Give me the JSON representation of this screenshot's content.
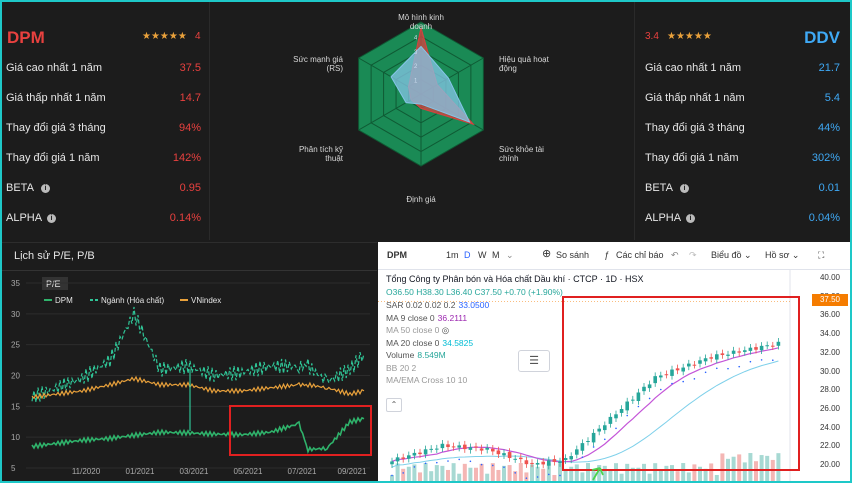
{
  "left": {
    "ticker": "DPM",
    "stars": "★★★★★",
    "rating": "4",
    "rows": [
      {
        "label": "Giá cao nhất 1 năm",
        "value": "37.5"
      },
      {
        "label": "Giá thấp nhất 1 năm",
        "value": "14.7"
      },
      {
        "label": "Thay đổi giá 3 tháng",
        "value": "94%"
      },
      {
        "label": "Thay đổi giá 1 năm",
        "value": "142%"
      },
      {
        "label": "BETA",
        "value": "0.95"
      },
      {
        "label": "ALPHA",
        "value": "0.14%"
      }
    ],
    "color": "#e8413f"
  },
  "right": {
    "ticker": "DDV",
    "stars": "★★★★★",
    "rating": "3.4",
    "rows": [
      {
        "label": "Giá cao nhất 1 năm",
        "value": "21.7"
      },
      {
        "label": "Giá thấp nhất 1 năm",
        "value": "5.4"
      },
      {
        "label": "Thay đổi giá 3 tháng",
        "value": "44%"
      },
      {
        "label": "Thay đổi giá 1 năm",
        "value": "302%"
      },
      {
        "label": "BETA",
        "value": "0.01"
      },
      {
        "label": "ALPHA",
        "value": "0.04%"
      }
    ],
    "color": "#3fa9f5"
  },
  "radar": {
    "axes": [
      "Mô hình kinh doanh",
      "Hiệu quả hoạt động",
      "Sức khỏe tài chính",
      "Định giá",
      "Phân tích kỹ thuật",
      "Sức mạnh giá (RS)"
    ],
    "rings": [
      "1",
      "2",
      "3",
      "4"
    ],
    "dpm": [
      4.6,
      1.3,
      4.2,
      1.0,
      0.8,
      1.0
    ],
    "ddv": [
      3.3,
      2.2,
      3.9,
      0.7,
      1.2,
      2.4
    ],
    "max": 5,
    "colors": {
      "dpm": "#d9403f",
      "ddv": "#86c5e8",
      "bg": "#1a8a55",
      "grid": "#0f5a34"
    }
  },
  "pe": {
    "title": "Lịch sử P/E, P/B",
    "tab": "P/E",
    "legend": [
      "DPM",
      "Ngành (Hóa chất)",
      "VNindex"
    ],
    "yticks": [
      5,
      10,
      15,
      20,
      25,
      30,
      35
    ],
    "xticks": [
      "11/2020",
      "01/2021",
      "03/2021",
      "05/2021",
      "07/2021",
      "09/2021"
    ],
    "colors": {
      "dpm": "#2fb36b",
      "industry": "#2fc496",
      "vnindex": "#e9a13b"
    }
  },
  "chart_data": {
    "type": "line",
    "title": "Lịch sử P/E, P/B",
    "ylim": [
      5,
      35
    ],
    "x": [
      "11/2020",
      "01/2021",
      "03/2021",
      "05/2021",
      "07/2021",
      "09/2021"
    ],
    "series": [
      {
        "name": "DPM",
        "values": [
          8.5,
          9.5,
          9.8,
          10.3,
          10.8,
          10.7,
          10.5,
          10.4,
          10.8,
          12.2,
          8.0,
          8.2,
          12.5,
          13.0
        ],
        "x": [
          "10/2020",
          "11/2020",
          "12/2020",
          "01/2021",
          "02/2021",
          "03/2021",
          "04/2021",
          "05/2021",
          "06/2021",
          "07/2021",
          "07/2021",
          "08/2021",
          "09/2021",
          "09/2021"
        ]
      },
      {
        "name": "Ngành (Hóa chất)",
        "values": [
          16.5,
          19.5,
          22.5,
          30.0,
          21.0,
          21.5,
          20.0,
          20.5,
          21.5,
          21.5,
          21.5,
          19.0,
          21.0,
          23.5
        ],
        "x": [
          "10/2020",
          "11/2020",
          "12/2020",
          "01/2021",
          "02/2021",
          "03/2021",
          "04/2021",
          "05/2021",
          "06/2021",
          "07/2021",
          "07/2021",
          "08/2021",
          "09/2021",
          "09/2021"
        ]
      },
      {
        "name": "VNindex",
        "values": [
          16.5,
          17.5,
          18.5,
          19.5,
          18.5,
          18.5,
          17.5,
          17.5,
          18.0,
          18.5,
          18.5,
          18.0,
          17.0,
          17.5
        ],
        "x": [
          "10/2020",
          "11/2020",
          "12/2020",
          "01/2021",
          "02/2021",
          "03/2021",
          "04/2021",
          "05/2021",
          "06/2021",
          "07/2021",
          "07/2021",
          "08/2021",
          "09/2021",
          "09/2021"
        ]
      }
    ]
  },
  "tv": {
    "symbol": "DPM",
    "toolbar": {
      "intervals": [
        "1m",
        "D",
        "W",
        "M"
      ],
      "compare": "So sánh",
      "indicators": "Các chỉ báo",
      "layouts": "Biểu đồ",
      "profile": "Hồ sơ"
    },
    "title": "Tổng Công ty Phân bón và Hóa chất Dầu khí · CTCP · 1D · HSX",
    "ohlc": {
      "o": "O36.50",
      "h": "H38.30",
      "l": "L36.40",
      "c": "C37.50",
      "chg": "+0.70 (+1.90%)"
    },
    "indicators": [
      {
        "name": "SAR 0.02 0.02 0.2",
        "value": "33.0500",
        "color": "#2962ff"
      },
      {
        "name": "MA 9 close 0",
        "value": "36.2111",
        "color": "#9c27b0"
      },
      {
        "name": "MA 50 close 0",
        "value": "",
        "color": "#999999"
      },
      {
        "name": "MA 20 close 0",
        "value": "34.5825",
        "color": "#00bcd4"
      },
      {
        "name": "Volume",
        "value": "8.549M",
        "color": "#26a69a"
      },
      {
        "name": "BB 20 2",
        "value": "",
        "color": "#999999"
      },
      {
        "name": "MA/EMA Cross 10 10",
        "value": "",
        "color": "#999999"
      }
    ],
    "yticks": [
      "40.00",
      "38.00",
      "36.00",
      "34.00",
      "32.00",
      "30.00",
      "28.00",
      "26.00",
      "24.00",
      "22.00",
      "20.00"
    ],
    "price_tag": "37.50",
    "colors": {
      "up": "#26a69a",
      "down": "#ef5350",
      "highlight": "#e02020",
      "tag": "#f57c00"
    }
  }
}
